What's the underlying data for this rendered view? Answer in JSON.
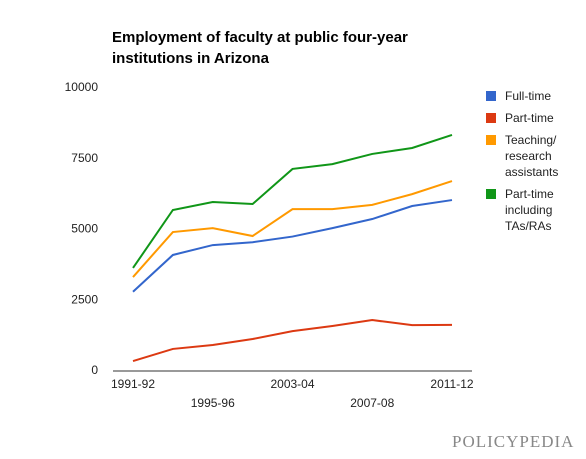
{
  "chart_data": {
    "type": "line",
    "title": "Employment of faculty at public four-year institutions in Arizona",
    "categories": [
      "1991-92",
      null,
      "1995-96",
      null,
      "2003-04",
      null,
      "2007-08",
      null,
      "2011-12"
    ],
    "series": [
      {
        "name": "Full-time",
        "color": "#3366cc",
        "values": [
          2800,
          4100,
          4450,
          4550,
          4750,
          5050,
          5370,
          5830,
          6040
        ]
      },
      {
        "name": "Part-time",
        "color": "#dc3912",
        "values": [
          350,
          780,
          920,
          1130,
          1410,
          1590,
          1800,
          1620,
          1630
        ]
      },
      {
        "name": "Teaching/ research assistants",
        "color": "#ff9900",
        "values": [
          3320,
          4910,
          5050,
          4770,
          5720,
          5720,
          5870,
          6250,
          6710
        ]
      },
      {
        "name": "Part-time including TAs/RAs",
        "color": "#109618",
        "values": [
          3640,
          5690,
          5970,
          5900,
          7140,
          7310,
          7670,
          7880,
          8340
        ]
      }
    ],
    "ylim": [
      0,
      10000
    ],
    "yticks": [
      0,
      2500,
      5000,
      7500,
      10000
    ],
    "grid": false,
    "legend": "right"
  },
  "logo": "POLICYPEDIA"
}
